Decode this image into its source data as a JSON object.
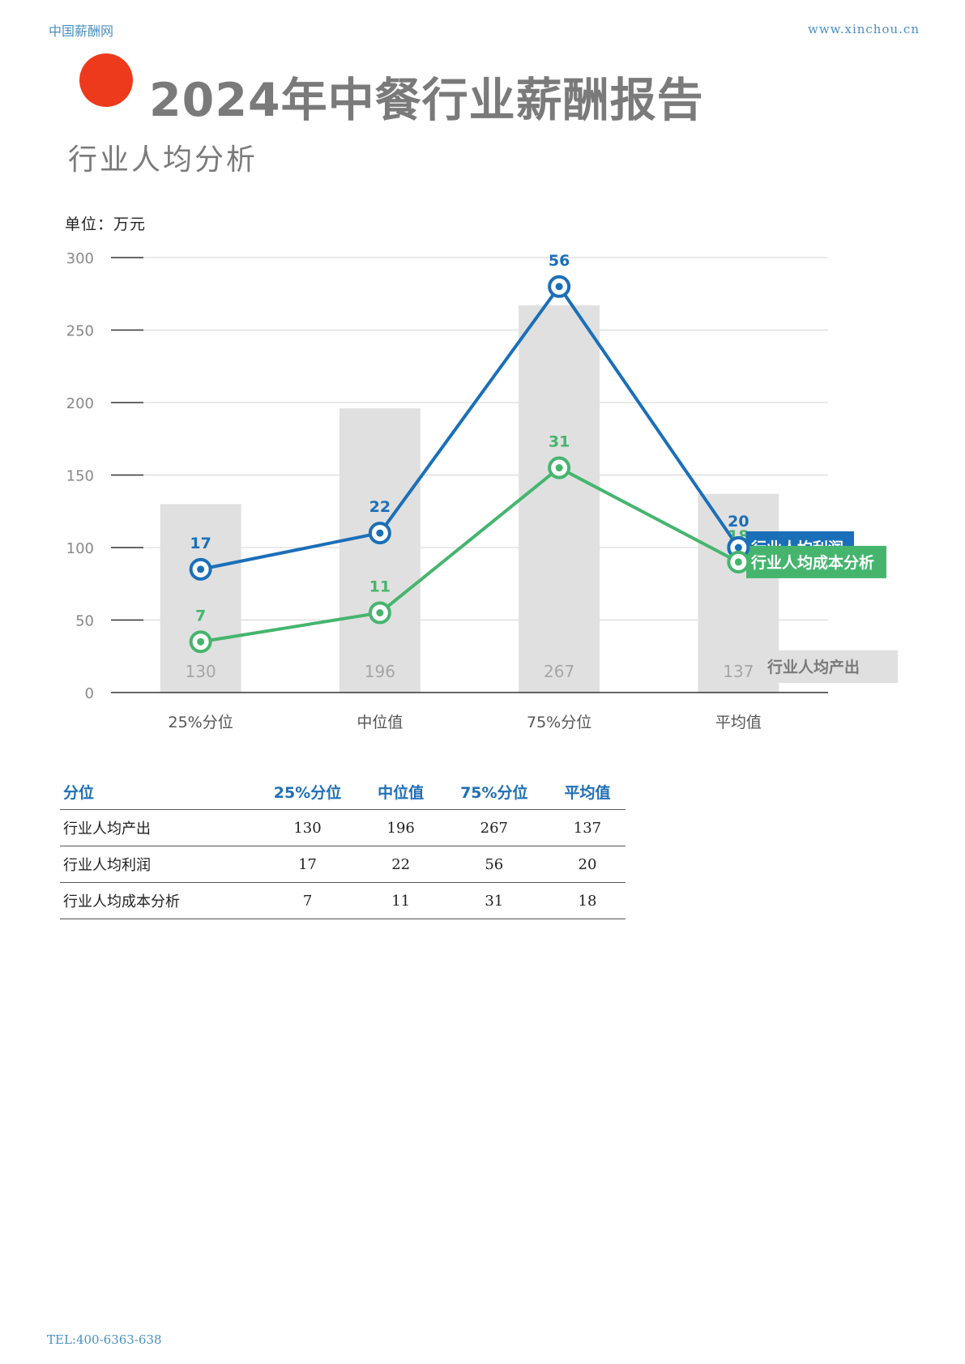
{
  "header": {
    "site_name": "中国薪酬网",
    "site_url": "www.xinchou.cn"
  },
  "title": "2024年中餐行业薪酬报告",
  "section_title": "行业人均分析",
  "colors": {
    "accent_dot": "#ee3a1c",
    "bar": "#e0e0e0",
    "profit": "#1b6fb8",
    "cost": "#45b56e"
  },
  "chart_data": {
    "type": "bar",
    "unit_label": "单位：万元",
    "categories": [
      "25%分位",
      "中位值",
      "75%分位",
      "平均值"
    ],
    "ylim": [
      0,
      300
    ],
    "yticks": [
      "0",
      "50",
      "100",
      "150",
      "200",
      "250",
      "300"
    ],
    "grid": true,
    "series": [
      {
        "name": "行业人均产出",
        "type": "bar",
        "values": [
          130,
          196,
          267,
          137
        ]
      },
      {
        "name": "行业人均利润",
        "type": "line",
        "values": [
          17,
          22,
          56,
          20
        ],
        "plot_values": [
          85,
          110,
          280,
          100
        ]
      },
      {
        "name": "行业人均成本分析",
        "type": "line",
        "values": [
          7,
          11,
          31,
          18
        ],
        "plot_values": [
          35,
          55,
          155,
          90
        ]
      }
    ]
  },
  "table": {
    "headers": [
      "分位",
      "25%分位",
      "中位值",
      "75%分位",
      "平均值"
    ],
    "rows": [
      [
        "行业人均产出",
        "130",
        "196",
        "267",
        "137"
      ],
      [
        "行业人均利润",
        "17",
        "22",
        "56",
        "20"
      ],
      [
        "行业人均成本分析",
        "7",
        "11",
        "31",
        "18"
      ]
    ]
  },
  "footer": {
    "tel": "TEL:400-6363-638"
  }
}
